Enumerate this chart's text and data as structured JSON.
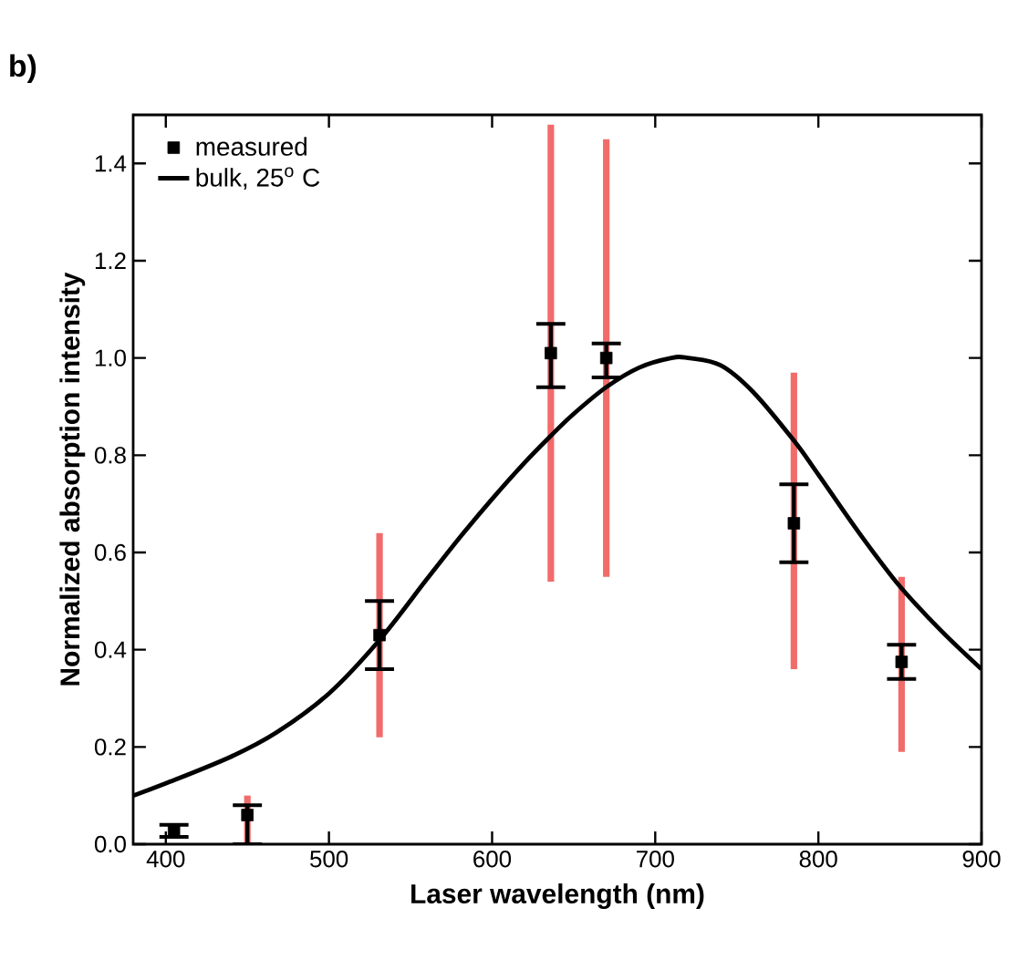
{
  "chart_data": {
    "type": "scatter",
    "title": "b)",
    "xlabel": "Laser wavelength (nm)",
    "ylabel": "Normalized absorption intensity",
    "xlim": [
      380,
      900
    ],
    "xticks": [
      400,
      500,
      600,
      700,
      800,
      900
    ],
    "ylim": [
      0,
      1.5
    ],
    "yticks": [
      {
        "value": 0,
        "label": "0.0"
      },
      0.2,
      0.4,
      0.6,
      0.8,
      {
        "value": 1,
        "label": "1.0"
      },
      1.2,
      1.4
    ],
    "legend": "top left",
    "grid": false,
    "series": [
      {
        "type": "bar",
        "color": "#f26b6b",
        "x": [
          450,
          531,
          636,
          670,
          785,
          851
        ],
        "base": [
          0.0,
          0.22,
          0.54,
          0.55,
          0.36,
          0.19
        ],
        "values": [
          0.1,
          0.42,
          0.94,
          0.9,
          0.61,
          0.36
        ]
      },
      {
        "name": "measured",
        "color": "#000000",
        "marker": "square",
        "x": [
          405,
          450,
          531,
          636,
          670,
          785,
          851
        ],
        "values": [
          0.03,
          0.06,
          0.43,
          1.01,
          1.0,
          0.66,
          0.375
        ],
        "errors": [
          [
            0.015,
            0.04
          ],
          [
            0.0,
            0.08
          ],
          [
            0.36,
            0.5
          ],
          [
            0.94,
            1.07
          ],
          [
            0.96,
            1.03
          ],
          [
            0.58,
            0.74
          ],
          [
            0.34,
            0.41
          ]
        ]
      },
      {
        "type": "line",
        "name": "bulk, 25$^{o}$ C",
        "color": "#000000",
        "marker": "none",
        "line_style": "solid",
        "x": [
          380,
          400,
          440,
          468,
          500,
          531,
          560,
          580,
          600,
          620,
          636,
          650,
          670,
          690,
          710,
          720,
          740,
          760,
          785,
          800,
          825,
          850,
          875,
          900
        ],
        "values": [
          0.1,
          0.125,
          0.18,
          0.23,
          0.31,
          0.42,
          0.545,
          0.63,
          0.71,
          0.785,
          0.84,
          0.885,
          0.94,
          0.98,
          1.0,
          1.0,
          0.985,
          0.93,
          0.83,
          0.76,
          0.64,
          0.53,
          0.44,
          0.36
        ]
      }
    ]
  }
}
